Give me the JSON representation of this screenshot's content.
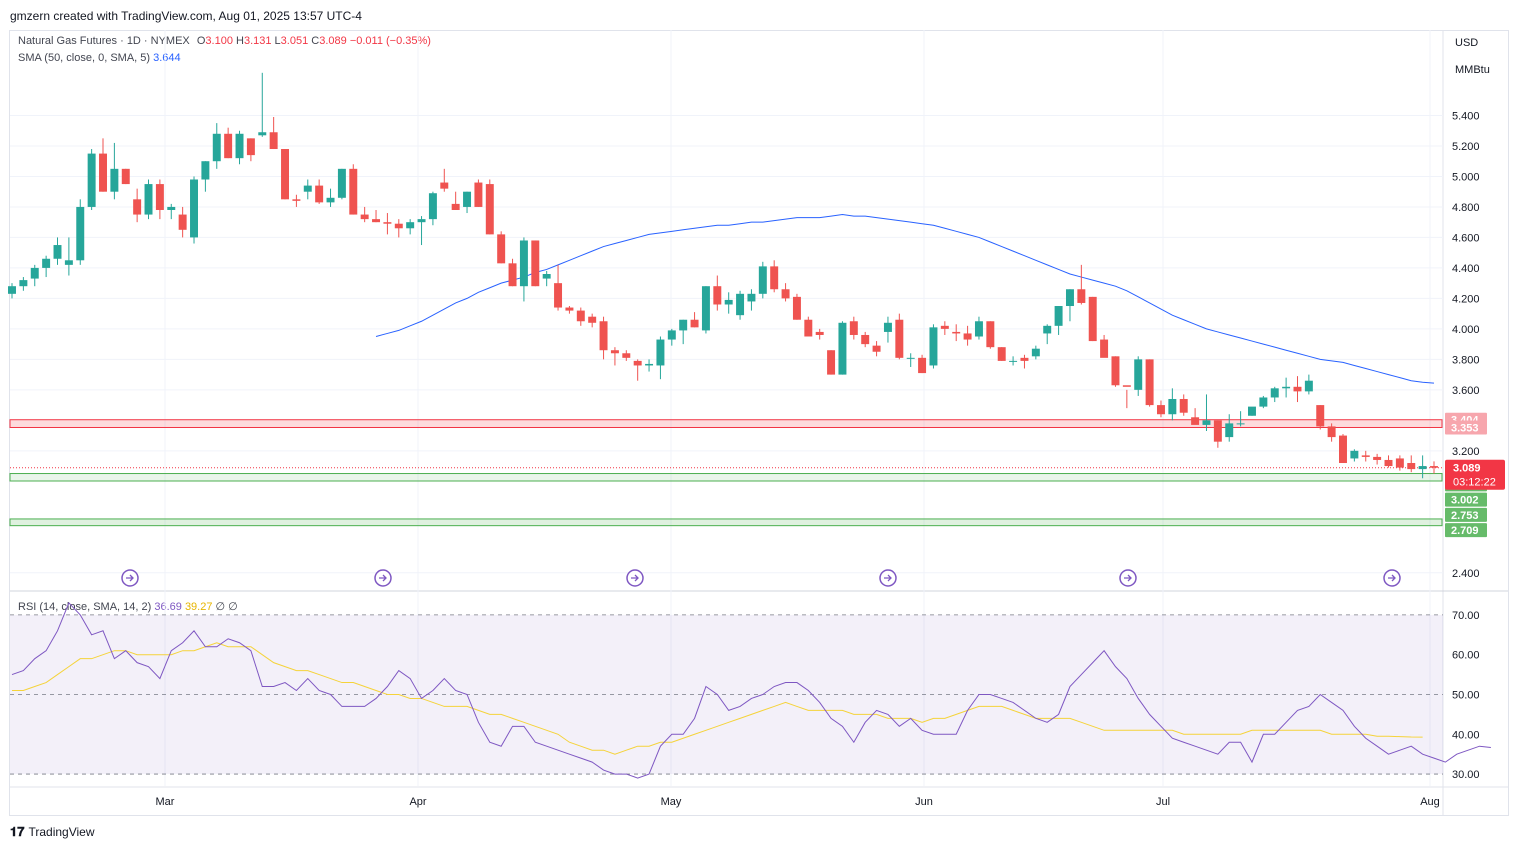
{
  "header": {
    "attribution": "gmzern created with TradingView.com, Aug 01, 2025 13:57 UTC-4"
  },
  "legend": {
    "symbol": "Natural Gas Futures · 1D · NYMEX",
    "o_label": "O",
    "o": "3.100",
    "h_label": "H",
    "h": "3.131",
    "l_label": "L",
    "l": "3.051",
    "c_label": "C",
    "c": "3.089",
    "change": "−0.011 (−0.35%)",
    "sma_label": "SMA (50, close, 0, SMA, 5)",
    "sma_value": "3.644",
    "rsi_label": "RSI (14, close, SMA, 14, 2)",
    "rsi_value": "36.69",
    "rsi_sma_value": "39.27",
    "rsi_extra": "∅ ∅"
  },
  "price_axis": {
    "currency": "USD",
    "unit": "MMBtu"
  },
  "footer": {
    "brand": "TradingView"
  },
  "colors": {
    "up": "#26a69a",
    "down": "#ef5350",
    "sma": "#2962ff",
    "rsi": "#7e57c2",
    "rsi_sma": "#f5d33a"
  },
  "chart_data": [
    {
      "type": "candlestick",
      "x_labels": [
        "Mar",
        "Apr",
        "May",
        "Jun",
        "Jul",
        "Aug"
      ],
      "y_ticks": [
        2.4,
        3.2,
        3.6,
        3.8,
        4.0,
        4.2,
        4.4,
        4.6,
        4.8,
        5.0,
        5.2,
        5.4
      ],
      "ylim": [
        2.3,
        5.6
      ],
      "candles": [
        [
          4.23,
          4.3,
          4.2,
          4.28
        ],
        [
          4.28,
          4.34,
          4.25,
          4.32
        ],
        [
          4.33,
          4.42,
          4.28,
          4.4
        ],
        [
          4.4,
          4.48,
          4.34,
          4.46
        ],
        [
          4.46,
          4.6,
          4.42,
          4.55
        ],
        [
          4.42,
          4.6,
          4.35,
          4.45
        ],
        [
          4.45,
          4.85,
          4.42,
          4.8
        ],
        [
          4.8,
          5.18,
          4.78,
          5.15
        ],
        [
          5.15,
          5.25,
          4.9,
          4.9
        ],
        [
          4.9,
          5.22,
          4.85,
          5.05
        ],
        [
          5.05,
          5.05,
          4.95,
          4.95
        ],
        [
          4.85,
          4.92,
          4.7,
          4.75
        ],
        [
          4.75,
          4.98,
          4.72,
          4.95
        ],
        [
          4.95,
          4.98,
          4.72,
          4.78
        ],
        [
          4.78,
          4.82,
          4.72,
          4.8
        ],
        [
          4.75,
          4.8,
          4.6,
          4.65
        ],
        [
          4.6,
          5.0,
          4.56,
          4.98
        ],
        [
          4.98,
          5.1,
          4.9,
          5.1
        ],
        [
          5.1,
          5.35,
          5.05,
          5.28
        ],
        [
          5.28,
          5.32,
          5.12,
          5.12
        ],
        [
          5.12,
          5.3,
          5.08,
          5.28
        ],
        [
          5.25,
          5.25,
          5.1,
          5.14
        ],
        [
          5.27,
          5.68,
          5.26,
          5.29
        ],
        [
          5.29,
          5.39,
          5.18,
          5.18
        ],
        [
          5.18,
          5.18,
          4.85,
          4.85
        ],
        [
          4.85,
          4.88,
          4.8,
          4.84
        ],
        [
          4.9,
          4.98,
          4.85,
          4.94
        ],
        [
          4.94,
          4.98,
          4.82,
          4.83
        ],
        [
          4.83,
          4.92,
          4.8,
          4.86
        ],
        [
          4.86,
          5.05,
          4.85,
          5.05
        ],
        [
          5.05,
          5.08,
          4.75,
          4.75
        ],
        [
          4.75,
          4.8,
          4.7,
          4.72
        ],
        [
          4.72,
          4.78,
          4.7,
          4.7
        ],
        [
          4.7,
          4.76,
          4.62,
          4.69
        ],
        [
          4.69,
          4.72,
          4.6,
          4.66
        ],
        [
          4.66,
          4.72,
          4.62,
          4.7
        ],
        [
          4.7,
          4.74,
          4.55,
          4.72
        ],
        [
          4.72,
          4.9,
          4.68,
          4.89
        ],
        [
          4.96,
          5.05,
          4.9,
          4.92
        ],
        [
          4.82,
          4.9,
          4.78,
          4.78
        ],
        [
          4.8,
          4.9,
          4.76,
          4.9
        ],
        [
          4.96,
          4.98,
          4.8,
          4.8
        ],
        [
          4.95,
          4.98,
          4.62,
          4.62
        ],
        [
          4.62,
          4.64,
          4.43,
          4.43
        ],
        [
          4.43,
          4.46,
          4.28,
          4.28
        ],
        [
          4.28,
          4.6,
          4.18,
          4.58
        ],
        [
          4.58,
          4.58,
          4.28,
          4.28
        ],
        [
          4.33,
          4.38,
          4.28,
          4.36
        ],
        [
          4.3,
          4.42,
          4.12,
          4.14
        ],
        [
          4.14,
          4.15,
          4.1,
          4.12
        ],
        [
          4.12,
          4.14,
          4.02,
          4.05
        ],
        [
          4.08,
          4.1,
          4.01,
          4.04
        ],
        [
          4.05,
          4.08,
          3.8,
          3.86
        ],
        [
          3.86,
          3.88,
          3.76,
          3.84
        ],
        [
          3.84,
          3.86,
          3.79,
          3.81
        ],
        [
          3.79,
          3.8,
          3.66,
          3.76
        ],
        [
          3.76,
          3.8,
          3.72,
          3.77
        ],
        [
          3.76,
          3.95,
          3.67,
          3.93
        ],
        [
          3.93,
          4.0,
          3.89,
          3.99
        ],
        [
          3.99,
          4.06,
          3.9,
          4.06
        ],
        [
          4.06,
          4.11,
          4.01,
          4.01
        ],
        [
          3.99,
          4.28,
          3.97,
          4.28
        ],
        [
          4.28,
          4.35,
          4.12,
          4.16
        ],
        [
          4.16,
          4.24,
          4.1,
          4.19
        ],
        [
          4.09,
          4.25,
          4.06,
          4.23
        ],
        [
          4.18,
          4.26,
          4.12,
          4.23
        ],
        [
          4.23,
          4.44,
          4.2,
          4.41
        ],
        [
          4.41,
          4.45,
          4.24,
          4.26
        ],
        [
          4.26,
          4.3,
          4.18,
          4.2
        ],
        [
          4.21,
          4.23,
          4.06,
          4.06
        ],
        [
          4.06,
          4.08,
          3.95,
          3.95
        ],
        [
          3.98,
          4.0,
          3.93,
          3.96
        ],
        [
          3.86,
          3.86,
          3.7,
          3.7
        ],
        [
          3.7,
          4.05,
          3.7,
          4.04
        ],
        [
          4.05,
          4.08,
          3.93,
          3.96
        ],
        [
          3.96,
          3.98,
          3.88,
          3.9
        ],
        [
          3.89,
          3.92,
          3.82,
          3.85
        ],
        [
          3.98,
          4.08,
          3.91,
          4.04
        ],
        [
          4.06,
          4.1,
          3.8,
          3.81
        ],
        [
          3.81,
          3.84,
          3.75,
          3.81
        ],
        [
          3.81,
          3.83,
          3.71,
          3.71
        ],
        [
          3.76,
          4.03,
          3.74,
          4.01
        ],
        [
          4.02,
          4.05,
          3.96,
          4.0
        ],
        [
          3.98,
          4.03,
          3.92,
          3.97
        ],
        [
          3.97,
          4.02,
          3.89,
          3.93
        ],
        [
          3.95,
          4.08,
          3.93,
          4.05
        ],
        [
          4.05,
          4.05,
          3.87,
          3.88
        ],
        [
          3.88,
          3.88,
          3.79,
          3.79
        ],
        [
          3.79,
          3.82,
          3.76,
          3.79
        ],
        [
          3.81,
          3.83,
          3.74,
          3.79
        ],
        [
          3.82,
          3.89,
          3.8,
          3.87
        ],
        [
          3.97,
          4.03,
          3.9,
          4.02
        ],
        [
          4.02,
          4.15,
          3.96,
          4.15
        ],
        [
          4.15,
          4.26,
          4.05,
          4.26
        ],
        [
          4.26,
          4.42,
          4.16,
          4.17
        ],
        [
          4.21,
          4.21,
          3.92,
          3.92
        ],
        [
          3.93,
          3.96,
          3.82,
          3.81
        ],
        [
          3.82,
          3.82,
          3.62,
          3.63
        ],
        [
          3.63,
          3.6,
          3.48,
          3.62
        ],
        [
          3.6,
          3.82,
          3.56,
          3.8
        ],
        [
          3.8,
          3.8,
          3.49,
          3.5
        ],
        [
          3.5,
          3.53,
          3.42,
          3.44
        ],
        [
          3.44,
          3.61,
          3.4,
          3.54
        ],
        [
          3.54,
          3.57,
          3.43,
          3.45
        ],
        [
          3.42,
          3.48,
          3.38,
          3.37
        ],
        [
          3.37,
          3.57,
          3.33,
          3.4
        ],
        [
          3.4,
          3.4,
          3.22,
          3.26
        ],
        [
          3.29,
          3.44,
          3.26,
          3.38
        ],
        [
          3.38,
          3.46,
          3.36,
          3.38
        ],
        [
          3.43,
          3.48,
          3.43,
          3.49
        ],
        [
          3.49,
          3.56,
          3.48,
          3.55
        ],
        [
          3.55,
          3.62,
          3.52,
          3.61
        ],
        [
          3.61,
          3.68,
          3.55,
          3.62
        ],
        [
          3.62,
          3.69,
          3.52,
          3.59
        ],
        [
          3.59,
          3.7,
          3.57,
          3.66
        ],
        [
          3.5,
          3.5,
          3.34,
          3.36
        ],
        [
          3.36,
          3.38,
          3.26,
          3.29
        ],
        [
          3.3,
          3.31,
          3.12,
          3.12
        ],
        [
          3.15,
          3.21,
          3.13,
          3.2
        ],
        [
          3.17,
          3.2,
          3.13,
          3.16
        ],
        [
          3.16,
          3.18,
          3.11,
          3.14
        ],
        [
          3.14,
          3.17,
          3.09,
          3.1
        ],
        [
          3.15,
          3.17,
          3.07,
          3.09
        ],
        [
          3.12,
          3.17,
          3.06,
          3.08
        ],
        [
          3.08,
          3.17,
          3.02,
          3.1
        ],
        [
          3.1,
          3.131,
          3.051,
          3.089
        ]
      ],
      "sma": [
        3.95,
        3.97,
        3.99,
        4.02,
        4.05,
        4.09,
        4.13,
        4.17,
        4.2,
        4.24,
        4.27,
        4.3,
        4.32,
        4.34,
        4.37,
        4.39,
        4.42,
        4.45,
        4.48,
        4.51,
        4.54,
        4.56,
        4.58,
        4.6,
        4.62,
        4.63,
        4.64,
        4.65,
        4.66,
        4.67,
        4.68,
        4.68,
        4.69,
        4.7,
        4.7,
        4.71,
        4.72,
        4.73,
        4.73,
        4.73,
        4.74,
        4.75,
        4.74,
        4.74,
        4.73,
        4.72,
        4.71,
        4.7,
        4.69,
        4.68,
        4.66,
        4.64,
        4.62,
        4.6,
        4.57,
        4.54,
        4.51,
        4.48,
        4.45,
        4.42,
        4.39,
        4.36,
        4.34,
        4.32,
        4.3,
        4.28,
        4.25,
        4.21,
        4.17,
        4.13,
        4.09,
        4.06,
        4.03,
        4.0,
        3.98,
        3.96,
        3.94,
        3.92,
        3.9,
        3.88,
        3.86,
        3.84,
        3.82,
        3.8,
        3.79,
        3.78,
        3.76,
        3.74,
        3.72,
        3.7,
        3.68,
        3.66,
        3.65,
        3.644
      ],
      "sma_start_index": 0,
      "levels": {
        "resistance": [
          3.404,
          3.353
        ],
        "support_1": [
          3.051,
          3.002
        ],
        "support_2": [
          2.753,
          2.709
        ],
        "last": "3.089",
        "countdown": "03:12:22"
      }
    },
    {
      "type": "line",
      "name": "RSI",
      "y_ticks": [
        30,
        40,
        50,
        60,
        70
      ],
      "ylim": [
        27,
        75
      ],
      "rsi": [
        55,
        56,
        59,
        61,
        66,
        73,
        70,
        65,
        66,
        59,
        61,
        58,
        57,
        54,
        61,
        63,
        66,
        62,
        62,
        64,
        63,
        61,
        52,
        52,
        53,
        51,
        54,
        51,
        50,
        47,
        47,
        47,
        49,
        52,
        56,
        54,
        49,
        51,
        54,
        51,
        50,
        43,
        38,
        37,
        42,
        42,
        38,
        37,
        36,
        35,
        34,
        33,
        31,
        30,
        30,
        29,
        30,
        37,
        40,
        40,
        44,
        52,
        50,
        46,
        47,
        49,
        50,
        52,
        53,
        53,
        51,
        48,
        44,
        42,
        38,
        43,
        46,
        45,
        42,
        44,
        41,
        40,
        40,
        40,
        46,
        50,
        50,
        49,
        48,
        46,
        44,
        43,
        45,
        52,
        55,
        58,
        61,
        57,
        54,
        49,
        45,
        42,
        39,
        38,
        37,
        36,
        35,
        38,
        38,
        33,
        40,
        40,
        43,
        46,
        47,
        50,
        48,
        46,
        42,
        39,
        37,
        35,
        36,
        37,
        35,
        34,
        33,
        35,
        36,
        37,
        36.69
      ],
      "rsi_sma": [
        51,
        51,
        52,
        53,
        55,
        57,
        59,
        59,
        60,
        61,
        61,
        60,
        60,
        60,
        60,
        61,
        61,
        62,
        63,
        62,
        62,
        62,
        60,
        58,
        57,
        56,
        56,
        55,
        54,
        53,
        53,
        52,
        51,
        50,
        50,
        49,
        49,
        48,
        47,
        47,
        47,
        46,
        45,
        45,
        44,
        43,
        42,
        41,
        40,
        38,
        37,
        36,
        36,
        35,
        36,
        37,
        37,
        38,
        38,
        39,
        40,
        41,
        42,
        43,
        44,
        45,
        46,
        47,
        48,
        47,
        46,
        46,
        46,
        46,
        45,
        45,
        45,
        44,
        44,
        44,
        43,
        44,
        44,
        45,
        46,
        47,
        47,
        47,
        46,
        45,
        44,
        44,
        44,
        44,
        43,
        42,
        41,
        41,
        41,
        41,
        41,
        41,
        41,
        40,
        40,
        40,
        40,
        40,
        40,
        41,
        41,
        41,
        41,
        41,
        41,
        41,
        40,
        40,
        40,
        40,
        39.5,
        39.5,
        39.4,
        39.3,
        39.27
      ],
      "bands": [
        30,
        50,
        70
      ]
    }
  ]
}
